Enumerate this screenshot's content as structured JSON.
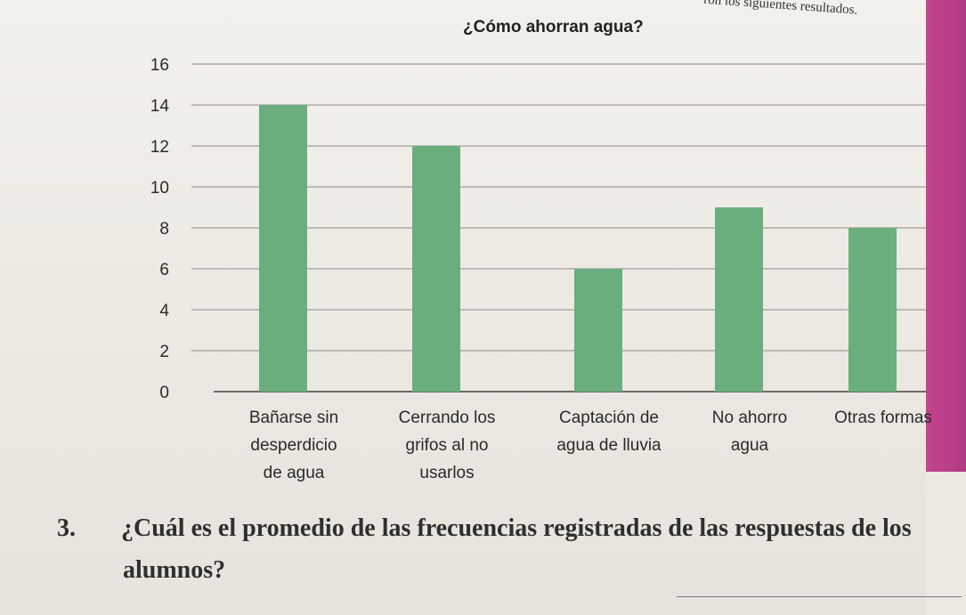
{
  "header_snippet": "ron los siguientes resultados.",
  "chart_data": {
    "type": "bar",
    "title": "¿Cómo ahorran agua?",
    "categories": [
      [
        "Bañarse sin",
        "desperdicio",
        "de agua"
      ],
      [
        "Cerrando los",
        "grifos al no",
        "usarlos"
      ],
      [
        "Captación de",
        "agua de lluvia"
      ],
      [
        "No ahorro",
        "agua"
      ],
      [
        "Otras formas"
      ]
    ],
    "values": [
      14,
      12,
      6,
      9,
      8
    ],
    "yticks": [
      "0",
      "2",
      "4",
      "6",
      "8",
      "10",
      "12",
      "14",
      "16"
    ],
    "ylim": [
      0,
      16
    ],
    "grid": true,
    "bar_color": "#6aae7e"
  },
  "question": {
    "number": "3.",
    "text": "¿Cuál es el promedio de las frecuencias registradas de las respuestas de los",
    "continuation": "alumnos?"
  }
}
